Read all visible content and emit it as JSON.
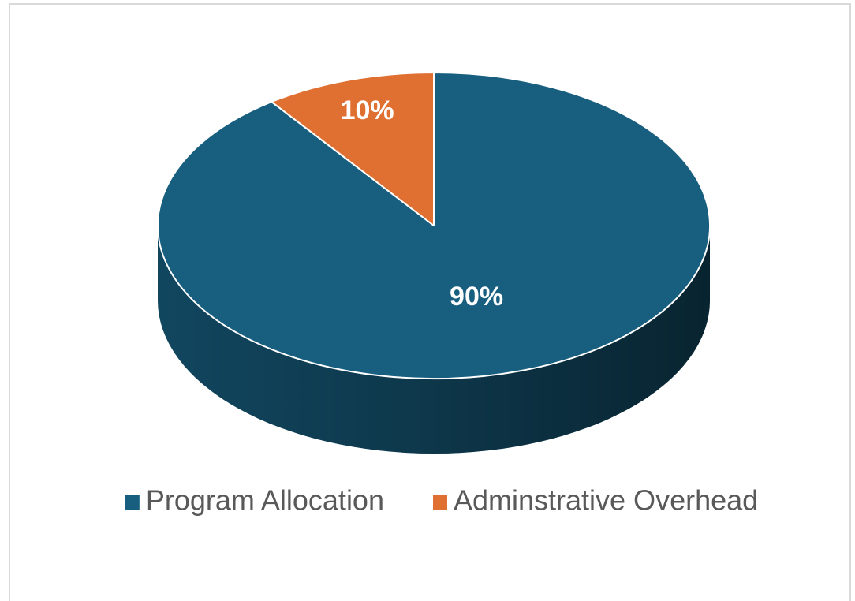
{
  "chart_data": {
    "type": "pie",
    "categories": [
      "Program Allocation",
      "Adminstrative Overhead"
    ],
    "values": [
      90,
      10
    ],
    "value_labels": [
      "90%",
      "10%"
    ],
    "colors": [
      "#175e7f",
      "#e07032"
    ],
    "legend": "bottom"
  }
}
